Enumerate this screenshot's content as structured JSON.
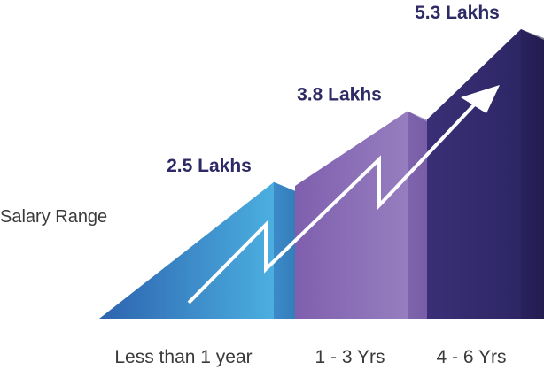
{
  "chart_data": {
    "type": "bar",
    "title": "",
    "xlabel": "",
    "ylabel": "Salary Range",
    "categories": [
      "Less than 1 year",
      "1 - 3 Yrs",
      "4 - 6 Yrs"
    ],
    "values": [
      2.5,
      3.8,
      5.3
    ],
    "unit": "Lakhs",
    "value_labels": [
      "2.5 Lakhs",
      "3.8 Lakhs",
      "5.3 Lakhs"
    ],
    "ylim": [
      0,
      5.3
    ],
    "grid": false,
    "colors": [
      "#3FA9DE",
      "#8A6EB8",
      "#2F2A63"
    ],
    "value_label_color": "#2E2A66",
    "has_trend_arrow": true
  }
}
